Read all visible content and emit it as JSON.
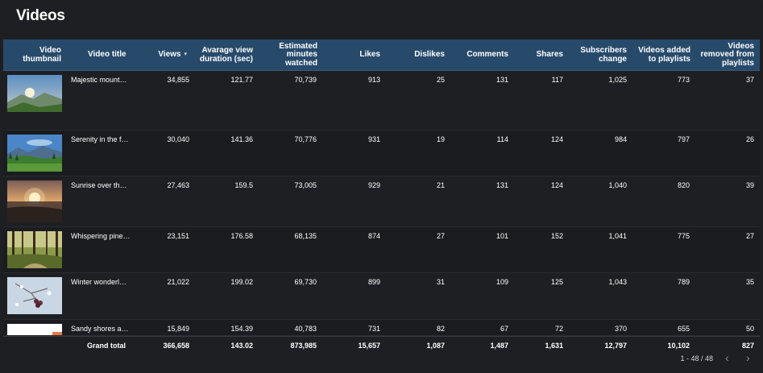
{
  "page": {
    "title": "Videos"
  },
  "columns": [
    "Video thumbnail",
    "Video title",
    "Views",
    "Avarage view duration (sec)",
    "Estimated minutes watched",
    "Likes",
    "Dislikes",
    "Comments",
    "Shares",
    "Subscribers change",
    "Videos added to playlists",
    "Videos removed from playlists"
  ],
  "sort": {
    "column": "Views",
    "direction": "descending",
    "indicator": "▾"
  },
  "rows": [
    {
      "thumbnail_icon": "mountain-landscape-image",
      "title": "Majestic mount…",
      "views": "34,855",
      "avg_duration": "121.77",
      "minutes": "70,739",
      "likes": "913",
      "dislikes": "25",
      "comments": "131",
      "shares": "117",
      "subs": "1,025",
      "added": "773",
      "removed": "37"
    },
    {
      "thumbnail_icon": "valley-landscape-image",
      "title": "Serenity in the f…",
      "views": "30,040",
      "avg_duration": "141.36",
      "minutes": "70,776",
      "likes": "931",
      "dislikes": "19",
      "comments": "114",
      "shares": "124",
      "subs": "984",
      "added": "797",
      "removed": "26"
    },
    {
      "thumbnail_icon": "sunrise-image",
      "title": "Sunrise over th…",
      "views": "27,463",
      "avg_duration": "159.5",
      "minutes": "73,005",
      "likes": "929",
      "dislikes": "21",
      "comments": "131",
      "shares": "124",
      "subs": "1,040",
      "added": "820",
      "removed": "39"
    },
    {
      "thumbnail_icon": "pine-forest-image",
      "title": "Whispering pine…",
      "views": "23,151",
      "avg_duration": "176.58",
      "minutes": "68,135",
      "likes": "874",
      "dislikes": "27",
      "comments": "101",
      "shares": "152",
      "subs": "1,041",
      "added": "775",
      "removed": "27"
    },
    {
      "thumbnail_icon": "winter-berries-image",
      "title": "Winter wonderl…",
      "views": "21,022",
      "avg_duration": "199.02",
      "minutes": "69,730",
      "likes": "899",
      "dislikes": "31",
      "comments": "109",
      "shares": "125",
      "subs": "1,043",
      "added": "789",
      "removed": "35"
    },
    {
      "thumbnail_icon": "beach-image",
      "title": "Sandy shores a…",
      "views": "15,849",
      "avg_duration": "154.39",
      "minutes": "40,783",
      "likes": "731",
      "dislikes": "82",
      "comments": "67",
      "shares": "72",
      "subs": "370",
      "added": "655",
      "removed": "50"
    }
  ],
  "total": {
    "label": "Grand total",
    "views": "366,658",
    "avg_duration": "143.02",
    "minutes": "873,985",
    "likes": "15,657",
    "dislikes": "1,087",
    "comments": "1,487",
    "shares": "1,631",
    "subs": "12,797",
    "added": "10,102",
    "removed": "827"
  },
  "pagination": {
    "range": "1 - 48 / 48",
    "prev": "‹",
    "next": "›"
  },
  "colors": {
    "background": "#1e1f22",
    "header": "#274a6b",
    "text": "#ffffff"
  }
}
